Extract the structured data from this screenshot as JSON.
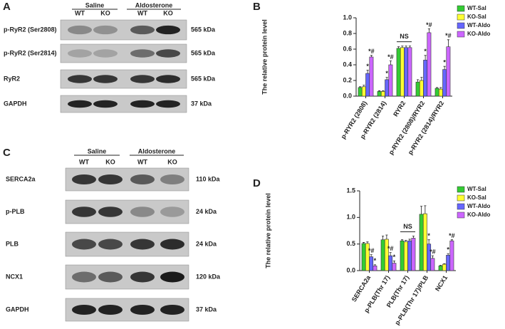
{
  "blots": [
    {
      "panel": "A",
      "groups": [
        "Saline",
        "Aldosterone"
      ],
      "lanes": [
        "WT",
        "KO",
        "WT",
        "KO"
      ],
      "rows": [
        {
          "label": "p-RyR2 (Ser2808)",
          "size": "565 kDa"
        },
        {
          "label": "p-RyR2 (Ser2814)",
          "size": "565 kDa"
        },
        {
          "label": "RyR2",
          "size": "565 kDa"
        },
        {
          "label": "GAPDH",
          "size": "37 kDa"
        }
      ]
    },
    {
      "panel": "C",
      "groups": [
        "Saline",
        "Aldosterone"
      ],
      "lanes": [
        "WT",
        "KO",
        "WT",
        "KO"
      ],
      "rows": [
        {
          "label": "SERCA2a",
          "size": "110 kDa"
        },
        {
          "label": "p-PLB",
          "size": "24 kDa"
        },
        {
          "label": "PLB",
          "size": "24 kDa"
        },
        {
          "label": "NCX1",
          "size": "120 kDa"
        },
        {
          "label": "GAPDH",
          "size": "37 kDa"
        }
      ]
    }
  ],
  "chart_data": [
    {
      "type": "bar",
      "panel": "B",
      "y_label": "The relative protein level",
      "categories": [
        "p-RYR2 (2808)",
        "p-RYR2 (2814)",
        "RYR2",
        "p-RYR2 (2808)/RYR2",
        "p-RYR2 (2814)/RYR2"
      ],
      "ylim": [
        0,
        1.0
      ],
      "yticks": [
        {
          "value": 0,
          "label": "0.0"
        },
        0.2,
        0.4,
        0.6,
        0.8,
        {
          "value": 1.0,
          "label": "1.0"
        }
      ],
      "legend": "top-right",
      "annotations": [
        {
          "text": "NS",
          "category": "RYR2"
        }
      ],
      "series": [
        {
          "name": "WT-Sal",
          "color": "#33cc33",
          "values": [
            0.11,
            0.06,
            0.61,
            0.18,
            0.1
          ],
          "errors": [
            0.01,
            0.01,
            0.02,
            0.03,
            0.01
          ],
          "marks": [
            null,
            null,
            null,
            null,
            null
          ]
        },
        {
          "name": "KO-Sal",
          "color": "#ffff33",
          "values": [
            0.12,
            0.06,
            0.62,
            0.2,
            0.09
          ],
          "errors": [
            0.02,
            0.01,
            0.02,
            0.04,
            0.02
          ],
          "marks": [
            null,
            null,
            null,
            null,
            null
          ]
        },
        {
          "name": "WT-Aldo",
          "color": "#6666ff",
          "values": [
            0.29,
            0.21,
            0.62,
            0.46,
            0.34
          ],
          "errors": [
            0.04,
            0.03,
            0.02,
            0.06,
            0.04
          ],
          "marks": [
            "*",
            "*",
            null,
            "*",
            "*"
          ]
        },
        {
          "name": "KO-Aldo",
          "color": "#cc66ff",
          "values": [
            0.5,
            0.4,
            0.62,
            0.81,
            0.63
          ],
          "errors": [
            0.02,
            0.05,
            0.02,
            0.05,
            0.09
          ],
          "marks": [
            "*#",
            "*#",
            null,
            "*#",
            "*#"
          ]
        }
      ]
    },
    {
      "type": "bar",
      "panel": "D",
      "y_label": "The relative protein level",
      "categories": [
        "SERCA2a",
        "p-PLB(Thr 17)",
        "PLB(Thr 17)",
        "p-PLB(Thr 17)/PLB",
        "NCX1"
      ],
      "ylim": [
        0,
        1.5
      ],
      "yticks": [
        {
          "value": 0,
          "label": "0.0"
        },
        0.5,
        {
          "value": 1.0,
          "label": "1.0"
        },
        1.5
      ],
      "legend": "top-right",
      "annotations": [
        {
          "text": "NS",
          "category": "PLB(Thr 17)"
        }
      ],
      "series": [
        {
          "name": "WT-Sal",
          "color": "#33cc33",
          "values": [
            0.51,
            0.58,
            0.56,
            1.06,
            0.09
          ],
          "errors": [
            0.02,
            0.07,
            0.02,
            0.15,
            0.01
          ],
          "marks": [
            null,
            null,
            null,
            null,
            null
          ]
        },
        {
          "name": "KO-Sal",
          "color": "#ffff33",
          "values": [
            0.51,
            0.59,
            0.54,
            1.07,
            0.12
          ],
          "errors": [
            0.03,
            0.08,
            0.03,
            0.15,
            0.01
          ],
          "marks": [
            null,
            null,
            null,
            null,
            null
          ]
        },
        {
          "name": "WT-Aldo",
          "color": "#6666ff",
          "values": [
            0.26,
            0.28,
            0.56,
            0.5,
            0.29
          ],
          "errors": [
            0.04,
            0.06,
            0.03,
            0.08,
            0.03
          ],
          "marks": [
            "*#",
            "*#",
            null,
            "*",
            "*"
          ]
        },
        {
          "name": "KO-Aldo",
          "color": "#cc66ff",
          "values": [
            0.09,
            0.14,
            0.61,
            0.23,
            0.56
          ],
          "errors": [
            0.02,
            0.04,
            0.04,
            0.05,
            0.02
          ],
          "marks": [
            "*",
            "*",
            null,
            "*#",
            "*#"
          ]
        }
      ]
    }
  ]
}
